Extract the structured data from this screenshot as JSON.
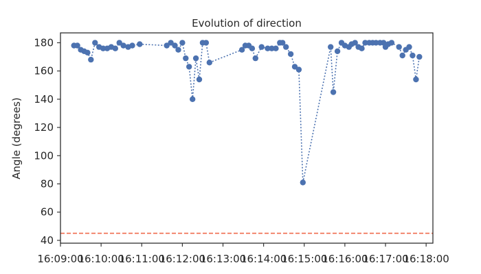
{
  "chart_data": {
    "type": "line",
    "title": "Evolution of direction",
    "xlabel": "",
    "ylabel": "Angle (degrees)",
    "x_axis": {
      "kind": "time",
      "xlim": [
        "16:09:00",
        "16:18:10"
      ],
      "ticks": [
        "16:09:00",
        "16:10:00",
        "16:11:00",
        "16:12:00",
        "16:13:00",
        "16:14:00",
        "16:15:00",
        "16:16:00",
        "16:17:00",
        "16:18:00"
      ]
    },
    "y_axis": {
      "ylim": [
        38,
        187
      ],
      "ticks": [
        40,
        60,
        80,
        100,
        120,
        140,
        160,
        180
      ]
    },
    "grid": false,
    "reference_line": {
      "y": 45,
      "color": "#ef6a4c",
      "style": "dashed"
    },
    "series": [
      {
        "color": "#4c72b0",
        "line_style": "dotted",
        "marker": "circle",
        "points": [
          {
            "x": "16:09:20",
            "y": 178
          },
          {
            "x": "16:09:25",
            "y": 178
          },
          {
            "x": "16:09:30",
            "y": 175
          },
          {
            "x": "16:09:35",
            "y": 174
          },
          {
            "x": "16:09:40",
            "y": 173
          },
          {
            "x": "16:09:45",
            "y": 168
          },
          {
            "x": "16:09:51",
            "y": 180
          },
          {
            "x": "16:09:57",
            "y": 177
          },
          {
            "x": "16:10:03",
            "y": 176
          },
          {
            "x": "16:10:09",
            "y": 176
          },
          {
            "x": "16:10:15",
            "y": 177
          },
          {
            "x": "16:10:21",
            "y": 176
          },
          {
            "x": "16:10:27",
            "y": 180
          },
          {
            "x": "16:10:33",
            "y": 178
          },
          {
            "x": "16:10:40",
            "y": 177
          },
          {
            "x": "16:10:46",
            "y": 178
          },
          {
            "x": "16:10:57",
            "y": 179
          },
          {
            "x": "16:11:37",
            "y": 178
          },
          {
            "x": "16:11:43",
            "y": 180
          },
          {
            "x": "16:11:49",
            "y": 178
          },
          {
            "x": "16:11:54",
            "y": 175
          },
          {
            "x": "16:12:00",
            "y": 180
          },
          {
            "x": "16:12:05",
            "y": 169
          },
          {
            "x": "16:12:10",
            "y": 163
          },
          {
            "x": "16:12:15",
            "y": 140
          },
          {
            "x": "16:12:20",
            "y": 169
          },
          {
            "x": "16:12:25",
            "y": 154
          },
          {
            "x": "16:12:30",
            "y": 180
          },
          {
            "x": "16:12:35",
            "y": 180
          },
          {
            "x": "16:12:40",
            "y": 166
          },
          {
            "x": "16:13:28",
            "y": 175
          },
          {
            "x": "16:13:33",
            "y": 178
          },
          {
            "x": "16:13:38",
            "y": 178
          },
          {
            "x": "16:13:43",
            "y": 176
          },
          {
            "x": "16:13:48",
            "y": 169
          },
          {
            "x": "16:13:57",
            "y": 177
          },
          {
            "x": "16:14:06",
            "y": 176
          },
          {
            "x": "16:14:12",
            "y": 176
          },
          {
            "x": "16:14:18",
            "y": 176
          },
          {
            "x": "16:14:24",
            "y": 180
          },
          {
            "x": "16:14:28",
            "y": 180
          },
          {
            "x": "16:14:33",
            "y": 177
          },
          {
            "x": "16:14:40",
            "y": 172
          },
          {
            "x": "16:14:46",
            "y": 163
          },
          {
            "x": "16:14:52",
            "y": 161
          },
          {
            "x": "16:14:58",
            "y": 81
          },
          {
            "x": "16:15:39",
            "y": 177
          },
          {
            "x": "16:15:43",
            "y": 145
          },
          {
            "x": "16:15:49",
            "y": 174
          },
          {
            "x": "16:15:55",
            "y": 180
          },
          {
            "x": "16:16:00",
            "y": 178
          },
          {
            "x": "16:16:06",
            "y": 177
          },
          {
            "x": "16:16:10",
            "y": 179
          },
          {
            "x": "16:16:15",
            "y": 180
          },
          {
            "x": "16:16:20",
            "y": 177
          },
          {
            "x": "16:16:25",
            "y": 176
          },
          {
            "x": "16:16:30",
            "y": 180
          },
          {
            "x": "16:16:36",
            "y": 180
          },
          {
            "x": "16:16:41",
            "y": 180
          },
          {
            "x": "16:16:46",
            "y": 180
          },
          {
            "x": "16:16:52",
            "y": 180
          },
          {
            "x": "16:16:57",
            "y": 180
          },
          {
            "x": "16:17:00",
            "y": 177
          },
          {
            "x": "16:17:04",
            "y": 179
          },
          {
            "x": "16:17:09",
            "y": 180
          },
          {
            "x": "16:17:20",
            "y": 177
          },
          {
            "x": "16:17:25",
            "y": 171
          },
          {
            "x": "16:17:30",
            "y": 175
          },
          {
            "x": "16:17:35",
            "y": 177
          },
          {
            "x": "16:17:40",
            "y": 171
          },
          {
            "x": "16:17:45",
            "y": 154
          },
          {
            "x": "16:17:50",
            "y": 170
          }
        ]
      }
    ]
  }
}
